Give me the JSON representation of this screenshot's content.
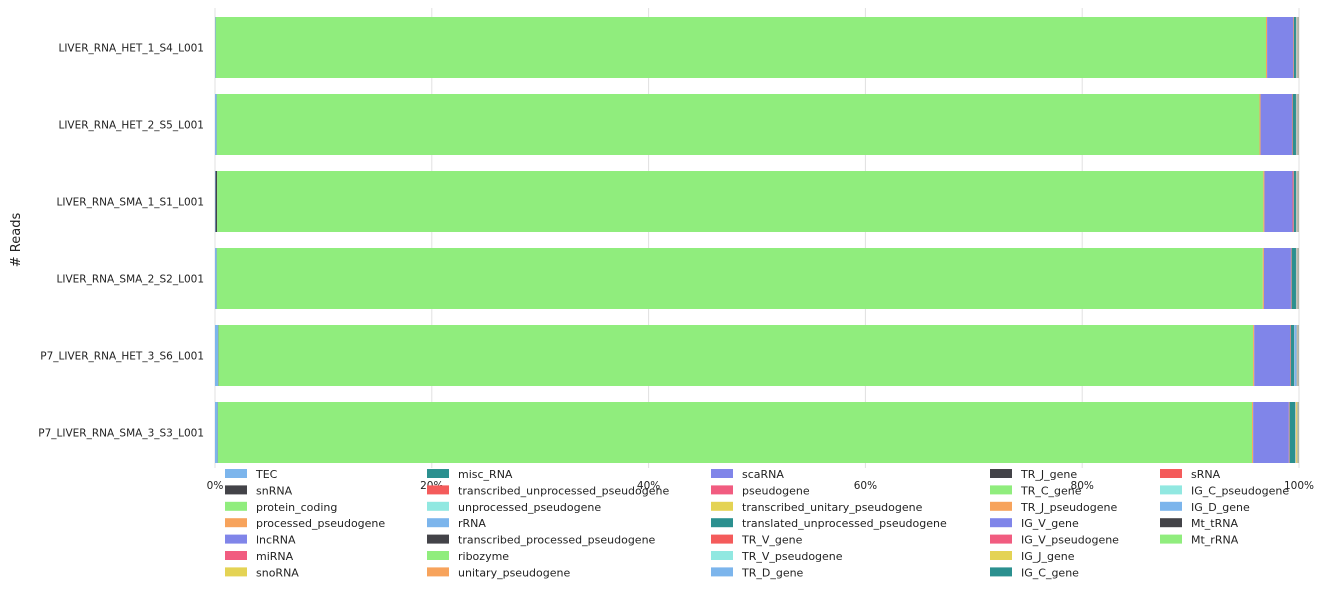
{
  "chart_data": {
    "type": "bar",
    "orientation": "horizontal",
    "stacked": true,
    "normalized": true,
    "ylabel": "# Reads",
    "xlabel": "",
    "xlim": [
      0,
      100
    ],
    "x_ticks": [
      "0%",
      "20%",
      "40%",
      "60%",
      "80%",
      "100%"
    ],
    "grid": true,
    "legend_placement": "bottom",
    "categories": [
      "LIVER_RNA_HET_1_S4_L001",
      "LIVER_RNA_HET_2_S5_L001",
      "LIVER_RNA_SMA_1_S1_L001",
      "LIVER_RNA_SMA_2_S2_L001",
      "P7_LIVER_RNA_HET_3_S6_L001",
      "P7_LIVER_RNA_SMA_3_S3_L001"
    ],
    "series": [
      {
        "name": "TEC",
        "color": "#7cb5ec",
        "values": [
          0.05,
          0.15,
          0.05,
          0.15,
          0.3,
          0.25
        ]
      },
      {
        "name": "snRNA",
        "color": "#434348",
        "values": [
          0.02,
          0.02,
          0.15,
          0.02,
          0.02,
          0.02
        ]
      },
      {
        "name": "protein_coding",
        "color": "#90ed7d",
        "values": [
          97.1,
          96.3,
          96.8,
          96.8,
          95.4,
          95.6
        ]
      },
      {
        "name": "processed_pseudogene",
        "color": "#f7a35c",
        "values": [
          0.1,
          0.1,
          0.1,
          0.1,
          0.1,
          0.1
        ]
      },
      {
        "name": "lncRNA",
        "color": "#8085e9",
        "values": [
          2.4,
          2.9,
          2.6,
          2.5,
          3.3,
          3.3
        ]
      },
      {
        "name": "miRNA",
        "color": "#f15c80",
        "values": [
          0.05,
          0.05,
          0.1,
          0.05,
          0.05,
          0.05
        ]
      },
      {
        "name": "snoRNA",
        "color": "#e4d354",
        "values": [
          0.02,
          0.02,
          0.02,
          0.02,
          0.02,
          0.02
        ]
      },
      {
        "name": "misc_RNA",
        "color": "#2b908f",
        "values": [
          0.2,
          0.3,
          0.2,
          0.4,
          0.3,
          0.5
        ]
      },
      {
        "name": "transcribed_unprocessed_pseudogene",
        "color": "#f45b5b",
        "values": [
          0.02,
          0.02,
          0.02,
          0.02,
          0.02,
          0.02
        ]
      },
      {
        "name": "unprocessed_pseudogene",
        "color": "#91e8e1",
        "values": [
          0.02,
          0.02,
          0.02,
          0.02,
          0.02,
          0.02
        ]
      },
      {
        "name": "rRNA",
        "color": "#7cb5ec",
        "values": [
          0.02,
          0.02,
          0.02,
          0.02,
          0.2,
          0.02
        ]
      },
      {
        "name": "transcribed_processed_pseudogene",
        "color": "#434348",
        "values": [
          0.01,
          0.01,
          0.01,
          0.01,
          0.01,
          0.01
        ]
      },
      {
        "name": "ribozyme",
        "color": "#90ed7d",
        "values": [
          0.01,
          0.01,
          0.01,
          0.01,
          0.01,
          0.01
        ]
      },
      {
        "name": "unitary_pseudogene",
        "color": "#f7a35c",
        "values": [
          0.01,
          0.01,
          0.01,
          0.01,
          0.01,
          0.01
        ]
      },
      {
        "name": "scaRNA",
        "color": "#8085e9",
        "values": [
          0.01,
          0.01,
          0.01,
          0.01,
          0.01,
          0.01
        ]
      },
      {
        "name": "pseudogene",
        "color": "#f15c80",
        "values": [
          0.01,
          0.01,
          0.01,
          0.01,
          0.01,
          0.01
        ]
      },
      {
        "name": "transcribed_unitary_pseudogene",
        "color": "#e4d354",
        "values": [
          0.01,
          0.01,
          0.01,
          0.01,
          0.01,
          0.1
        ]
      },
      {
        "name": "translated_unprocessed_pseudogene",
        "color": "#2b908f",
        "values": [
          0.01,
          0.01,
          0.01,
          0.01,
          0.01,
          0.01
        ]
      },
      {
        "name": "TR_V_gene",
        "color": "#f45b5b",
        "values": [
          0.01,
          0.01,
          0.01,
          0.01,
          0.01,
          0.01
        ]
      },
      {
        "name": "TR_V_pseudogene",
        "color": "#91e8e1",
        "values": [
          0.01,
          0.01,
          0.01,
          0.01,
          0.01,
          0.01
        ]
      },
      {
        "name": "TR_D_gene",
        "color": "#7cb5ec",
        "values": [
          0.01,
          0.01,
          0.01,
          0.01,
          0.01,
          0.01
        ]
      },
      {
        "name": "TR_J_gene",
        "color": "#434348",
        "values": [
          0.01,
          0.01,
          0.01,
          0.01,
          0.01,
          0.01
        ]
      },
      {
        "name": "TR_C_gene",
        "color": "#90ed7d",
        "values": [
          0.01,
          0.01,
          0.01,
          0.01,
          0.01,
          0.01
        ]
      },
      {
        "name": "TR_J_pseudogene",
        "color": "#f7a35c",
        "values": [
          0.01,
          0.01,
          0.01,
          0.01,
          0.01,
          0.01
        ]
      },
      {
        "name": "IG_V_gene",
        "color": "#8085e9",
        "values": [
          0.01,
          0.01,
          0.01,
          0.01,
          0.01,
          0.01
        ]
      },
      {
        "name": "IG_V_pseudogene",
        "color": "#f15c80",
        "values": [
          0.01,
          0.01,
          0.01,
          0.01,
          0.01,
          0.01
        ]
      },
      {
        "name": "IG_J_gene",
        "color": "#e4d354",
        "values": [
          0.01,
          0.01,
          0.01,
          0.01,
          0.01,
          0.01
        ]
      },
      {
        "name": "IG_C_gene",
        "color": "#2b908f",
        "values": [
          0.01,
          0.01,
          0.01,
          0.01,
          0.01,
          0.01
        ]
      },
      {
        "name": "sRNA",
        "color": "#f45b5b",
        "values": [
          0.01,
          0.01,
          0.01,
          0.01,
          0.01,
          0.01
        ]
      },
      {
        "name": "IG_C_pseudogene",
        "color": "#91e8e1",
        "values": [
          0.01,
          0.01,
          0.01,
          0.01,
          0.01,
          0.01
        ]
      },
      {
        "name": "IG_D_gene",
        "color": "#7cb5ec",
        "values": [
          0.01,
          0.01,
          0.01,
          0.01,
          0.01,
          0.01
        ]
      },
      {
        "name": "Mt_tRNA",
        "color": "#434348",
        "values": [
          0.01,
          0.01,
          0.01,
          0.01,
          0.01,
          0.01
        ]
      },
      {
        "name": "Mt_rRNA",
        "color": "#90ed7d",
        "values": [
          0.01,
          0.01,
          0.01,
          0.01,
          0.01,
          0.01
        ]
      }
    ]
  }
}
